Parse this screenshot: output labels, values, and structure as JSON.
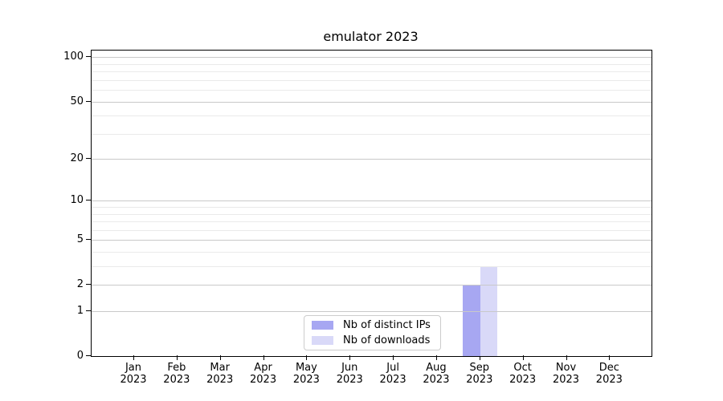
{
  "chart_data": {
    "type": "bar",
    "title": "emulator 2023",
    "categories": [
      "Jan",
      "Feb",
      "Mar",
      "Apr",
      "May",
      "Jun",
      "Jul",
      "Aug",
      "Sep",
      "Oct",
      "Nov",
      "Dec"
    ],
    "year_label": "2023",
    "series": [
      {
        "name": "Nb of distinct IPs",
        "color": "#a7a7f2",
        "values": [
          0,
          0,
          0,
          0,
          0,
          0,
          0,
          0,
          2,
          0,
          0,
          0
        ]
      },
      {
        "name": "Nb of downloads",
        "color": "#d9d9f8",
        "values": [
          0,
          0,
          0,
          0,
          0,
          0,
          0,
          0,
          3,
          0,
          0,
          0
        ]
      }
    ],
    "y_axis": {
      "scale": "log10(1+y)",
      "major_ticks": [
        0,
        1,
        2,
        5,
        10,
        20,
        50,
        100
      ],
      "minor_gridlines": [
        3,
        4,
        6,
        7,
        8,
        9,
        30,
        40,
        60,
        70,
        80,
        90
      ],
      "ylim": [
        0,
        111
      ],
      "grid": true
    },
    "legend": {
      "location": "lower center",
      "border_color": "#cccccc"
    }
  }
}
